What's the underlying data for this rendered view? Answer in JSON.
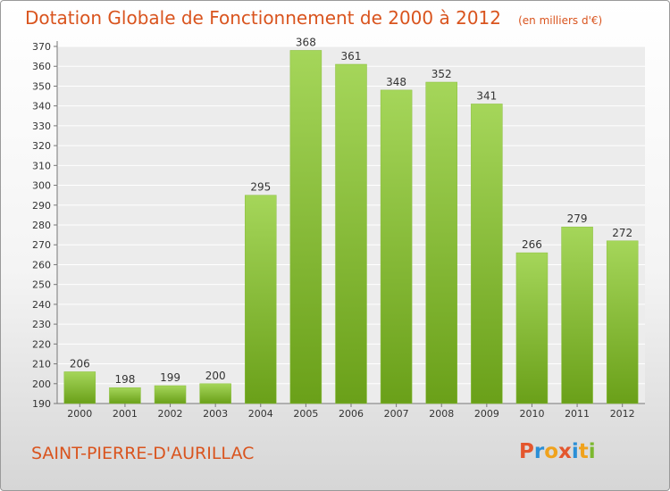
{
  "header": {
    "title": "Dotation Globale de Fonctionnement de 2000 à 2012",
    "unit": "(en milliers d'€)"
  },
  "footer": {
    "town": "SAINT-PIERRE-D'AURILLAC",
    "logo": "Proxiti"
  },
  "colors": {
    "accent": "#d9541e",
    "bar_light": "#a5d65a",
    "bar_dark": "#6aa019",
    "logo_letters": [
      "#e4572e",
      "#2b8fd6",
      "#f0a21c",
      "#e4572e",
      "#2b8fd6",
      "#f0a21c",
      "#7cb82f"
    ]
  },
  "chart_data": {
    "type": "bar",
    "title": "Dotation Globale de Fonctionnement de 2000 à 2012",
    "categories": [
      "2000",
      "2001",
      "2002",
      "2003",
      "2004",
      "2005",
      "2006",
      "2007",
      "2008",
      "2009",
      "2010",
      "2011",
      "2012"
    ],
    "values": [
      206,
      198,
      199,
      200,
      295,
      368,
      361,
      348,
      352,
      341,
      266,
      279,
      272
    ],
    "ylim": [
      190,
      370
    ],
    "yticks": [
      190,
      200,
      210,
      220,
      230,
      240,
      250,
      260,
      270,
      280,
      290,
      300,
      310,
      320,
      330,
      340,
      350,
      360,
      370
    ],
    "grid": true,
    "xlabel": "",
    "ylabel": ""
  }
}
